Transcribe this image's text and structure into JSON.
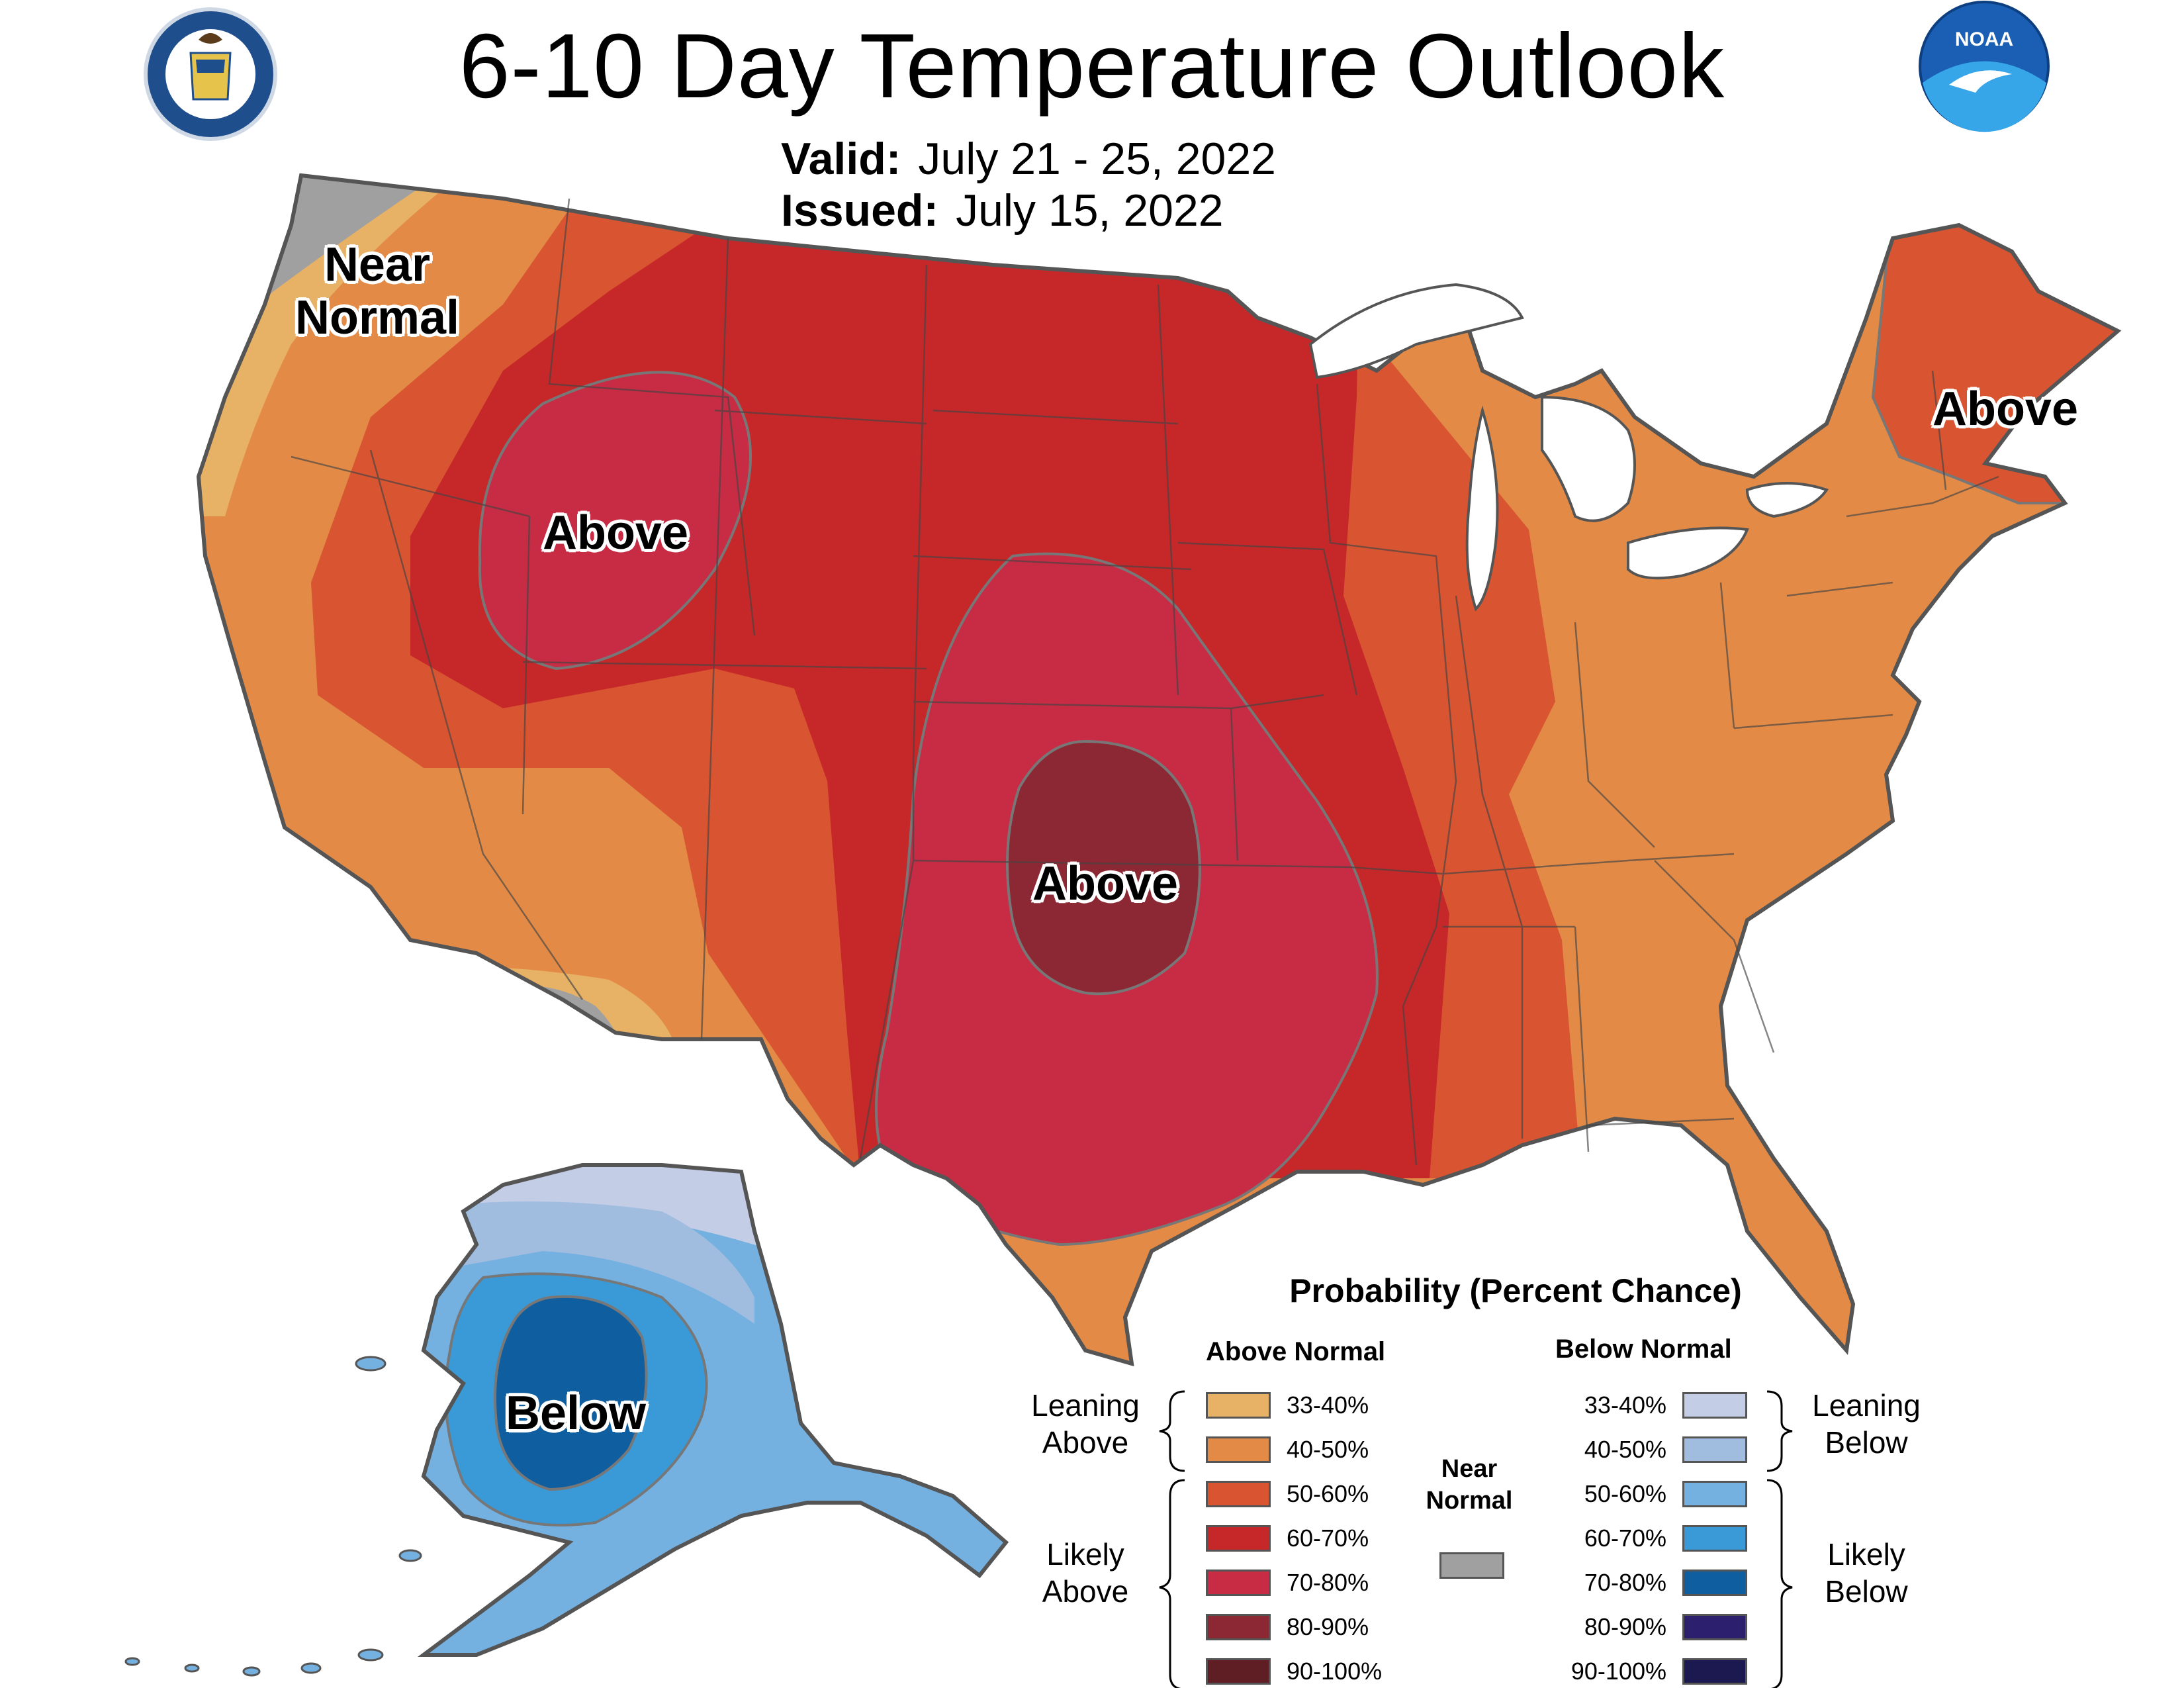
{
  "header": {
    "title": "6-10 Day Temperature Outlook",
    "valid_label": "Valid:",
    "valid_value": "July 21 - 25, 2022",
    "issued_label": "Issued:",
    "issued_value": "July 15, 2022"
  },
  "logos": {
    "commerce_seal": "department-of-commerce-seal",
    "commerce_seal_text": "DEPARTMENT OF COMMERCE · UNITED STATES OF AMERICA",
    "noaa_logo": "noaa-logo",
    "noaa_text": "NOAA"
  },
  "map_labels": {
    "near_normal_line1": "Near",
    "near_normal_line2": "Normal",
    "above_northwest": "Above",
    "above_central": "Above",
    "above_northeast": "Above",
    "below_alaska": "Below"
  },
  "legend": {
    "title": "Probability (Percent Chance)",
    "above_heading": "Above Normal",
    "below_heading": "Below Normal",
    "leaning_above": [
      "Leaning",
      "Above"
    ],
    "likely_above": [
      "Likely",
      "Above"
    ],
    "leaning_below": [
      "Leaning",
      "Below"
    ],
    "likely_below": [
      "Likely",
      "Below"
    ],
    "near_normal": [
      "Near",
      "Normal"
    ],
    "near_normal_color": "#a0a0a0",
    "above_items": [
      {
        "label": "33-40%",
        "color": "#e8b266"
      },
      {
        "label": "40-50%",
        "color": "#e38b46"
      },
      {
        "label": "50-60%",
        "color": "#d95532"
      },
      {
        "label": "60-70%",
        "color": "#c6282a"
      },
      {
        "label": "70-80%",
        "color": "#c72c44"
      },
      {
        "label": "80-90%",
        "color": "#8c2834"
      },
      {
        "label": "90-100%",
        "color": "#5e1e24"
      }
    ],
    "below_items": [
      {
        "label": "33-40%",
        "color": "#c4cde6"
      },
      {
        "label": "40-50%",
        "color": "#a0bde0"
      },
      {
        "label": "50-60%",
        "color": "#74b0e0"
      },
      {
        "label": "60-70%",
        "color": "#3a9ad8"
      },
      {
        "label": "70-80%",
        "color": "#0f5ea0"
      },
      {
        "label": "80-90%",
        "color": "#2c1f6e"
      },
      {
        "label": "90-100%",
        "color": "#1c1850"
      }
    ]
  }
}
